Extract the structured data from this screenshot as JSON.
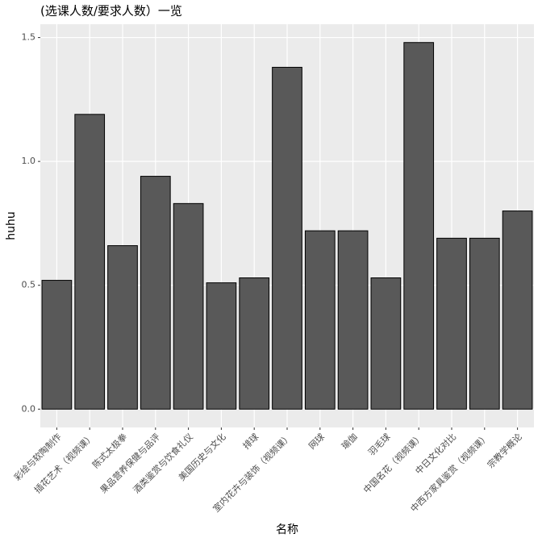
{
  "chart_data": {
    "type": "bar",
    "title": "(选课人数/要求人数）一览",
    "x_label": "名称",
    "y_label": "huhu",
    "categories": [
      "彩绘与软陶制作",
      "插花艺术（视频课）",
      "陈式太极拳",
      "果品营养保健与品评",
      "酒类鉴赏与饮食礼仪",
      "美国历史与文化",
      "排球",
      "室内花卉与装饰（视频课）",
      "网球",
      "瑜伽",
      "羽毛球",
      "中国名花（视频课）",
      "中日文化对比",
      "中西方家具鉴赏（视频课）",
      "宗教学概论"
    ],
    "values": [
      0.52,
      1.19,
      0.66,
      0.94,
      0.83,
      0.51,
      0.53,
      1.38,
      0.72,
      0.72,
      0.53,
      1.48,
      0.69,
      0.69,
      0.8
    ],
    "color": "#595959",
    "outline": "#000000",
    "ylim": [
      -0.074,
      1.554
    ],
    "yticks": [
      {
        "value": 0,
        "label": "0.0"
      },
      0.5,
      {
        "value": 1,
        "label": "1.0"
      },
      1.5
    ],
    "grid": true
  }
}
